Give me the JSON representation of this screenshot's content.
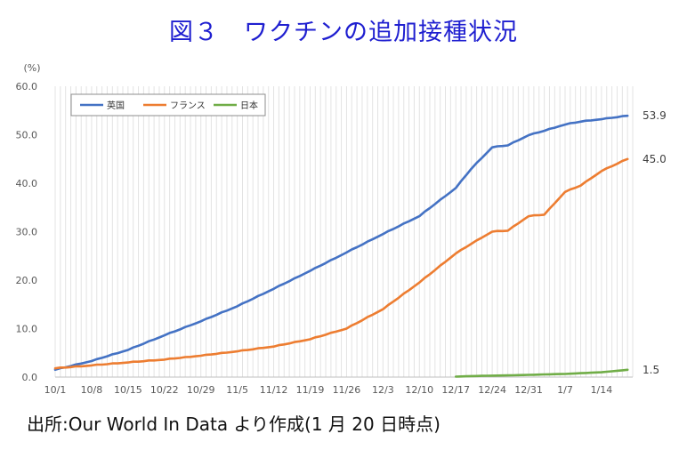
{
  "title": "図３　ワクチンの追加接種状況",
  "source": "出所:Our World In Data より作成(1 月 20 日時点)",
  "chart_data": {
    "type": "line",
    "y_unit_label": "(%)",
    "ylim": [
      0,
      60
    ],
    "yticks": [
      "0.0",
      "10.0",
      "20.0",
      "30.0",
      "40.0",
      "50.0",
      "60.0"
    ],
    "xlim": [
      0,
      111
    ],
    "xtick_labels": [
      "10/1",
      "10/8",
      "10/15",
      "10/22",
      "10/29",
      "11/5",
      "11/12",
      "11/19",
      "11/26",
      "12/3",
      "12/10",
      "12/17",
      "12/24",
      "12/31",
      "1/7",
      "1/14"
    ],
    "grid": "vertical",
    "legend_position": "top-left",
    "x": [
      "2021-10-01",
      "2021-10-08",
      "2021-10-15",
      "2021-10-22",
      "2021-10-29",
      "2021-11-05",
      "2021-11-12",
      "2021-11-19",
      "2021-11-26",
      "2021-12-03",
      "2021-12-10",
      "2021-12-17",
      "2021-12-20",
      "2021-12-24",
      "2021-12-27",
      "2021-12-31",
      "2022-01-03",
      "2022-01-07",
      "2022-01-10",
      "2022-01-14",
      "2022-01-19"
    ],
    "series": [
      {
        "name": "英国",
        "color": "#4472c4",
        "end_label": "53.9",
        "values": [
          1.5,
          3.3,
          5.6,
          8.6,
          11.5,
          14.6,
          18.2,
          21.9,
          25.7,
          29.5,
          33.2,
          39.0,
          43.0,
          47.4,
          47.8,
          49.9,
          50.8,
          52.1,
          52.7,
          53.2,
          53.9
        ]
      },
      {
        "name": "フランス",
        "color": "#ed7d31",
        "end_label": "45.0",
        "values": [
          1.8,
          2.4,
          3.0,
          3.6,
          4.4,
          5.3,
          6.3,
          7.8,
          10.0,
          14.0,
          19.5,
          25.5,
          27.5,
          30.0,
          30.2,
          33.2,
          33.5,
          38.2,
          39.5,
          42.5,
          45.0
        ]
      },
      {
        "name": "日本",
        "color": "#70ad47",
        "end_label": "1.5",
        "values": [
          null,
          null,
          null,
          null,
          null,
          null,
          null,
          null,
          null,
          null,
          null,
          0.1,
          0.2,
          0.3,
          0.35,
          0.45,
          0.55,
          0.65,
          0.8,
          1.0,
          1.5
        ]
      }
    ]
  }
}
